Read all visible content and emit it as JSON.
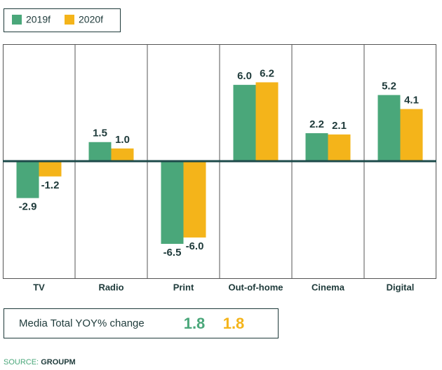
{
  "chart_data": {
    "type": "bar",
    "categories": [
      "TV",
      "Radio",
      "Print",
      "Out-of-home",
      "Cinema",
      "Digital"
    ],
    "series": [
      {
        "name": "2019f",
        "color": "#4aa77a",
        "values": [
          -2.9,
          1.5,
          -6.5,
          6.0,
          2.2,
          5.2
        ],
        "value_labels": [
          "-2.9",
          "1.5",
          "-6.5",
          "6.0",
          "2.2",
          "5.2"
        ]
      },
      {
        "name": "2020f",
        "color": "#f4b41a",
        "values": [
          -1.2,
          1.0,
          -6.0,
          6.2,
          2.1,
          4.1
        ],
        "value_labels": [
          "-1.2",
          "1.0",
          "-6.0",
          "6.2",
          "2.1",
          "4.1"
        ]
      }
    ],
    "ylim": [
      -9.2,
      9.2
    ],
    "summary": {
      "label": "Media Total YOY% change",
      "values": [
        1.8,
        1.8
      ]
    },
    "source": {
      "label": "SOURCE:",
      "name": "GROUPM"
    }
  }
}
